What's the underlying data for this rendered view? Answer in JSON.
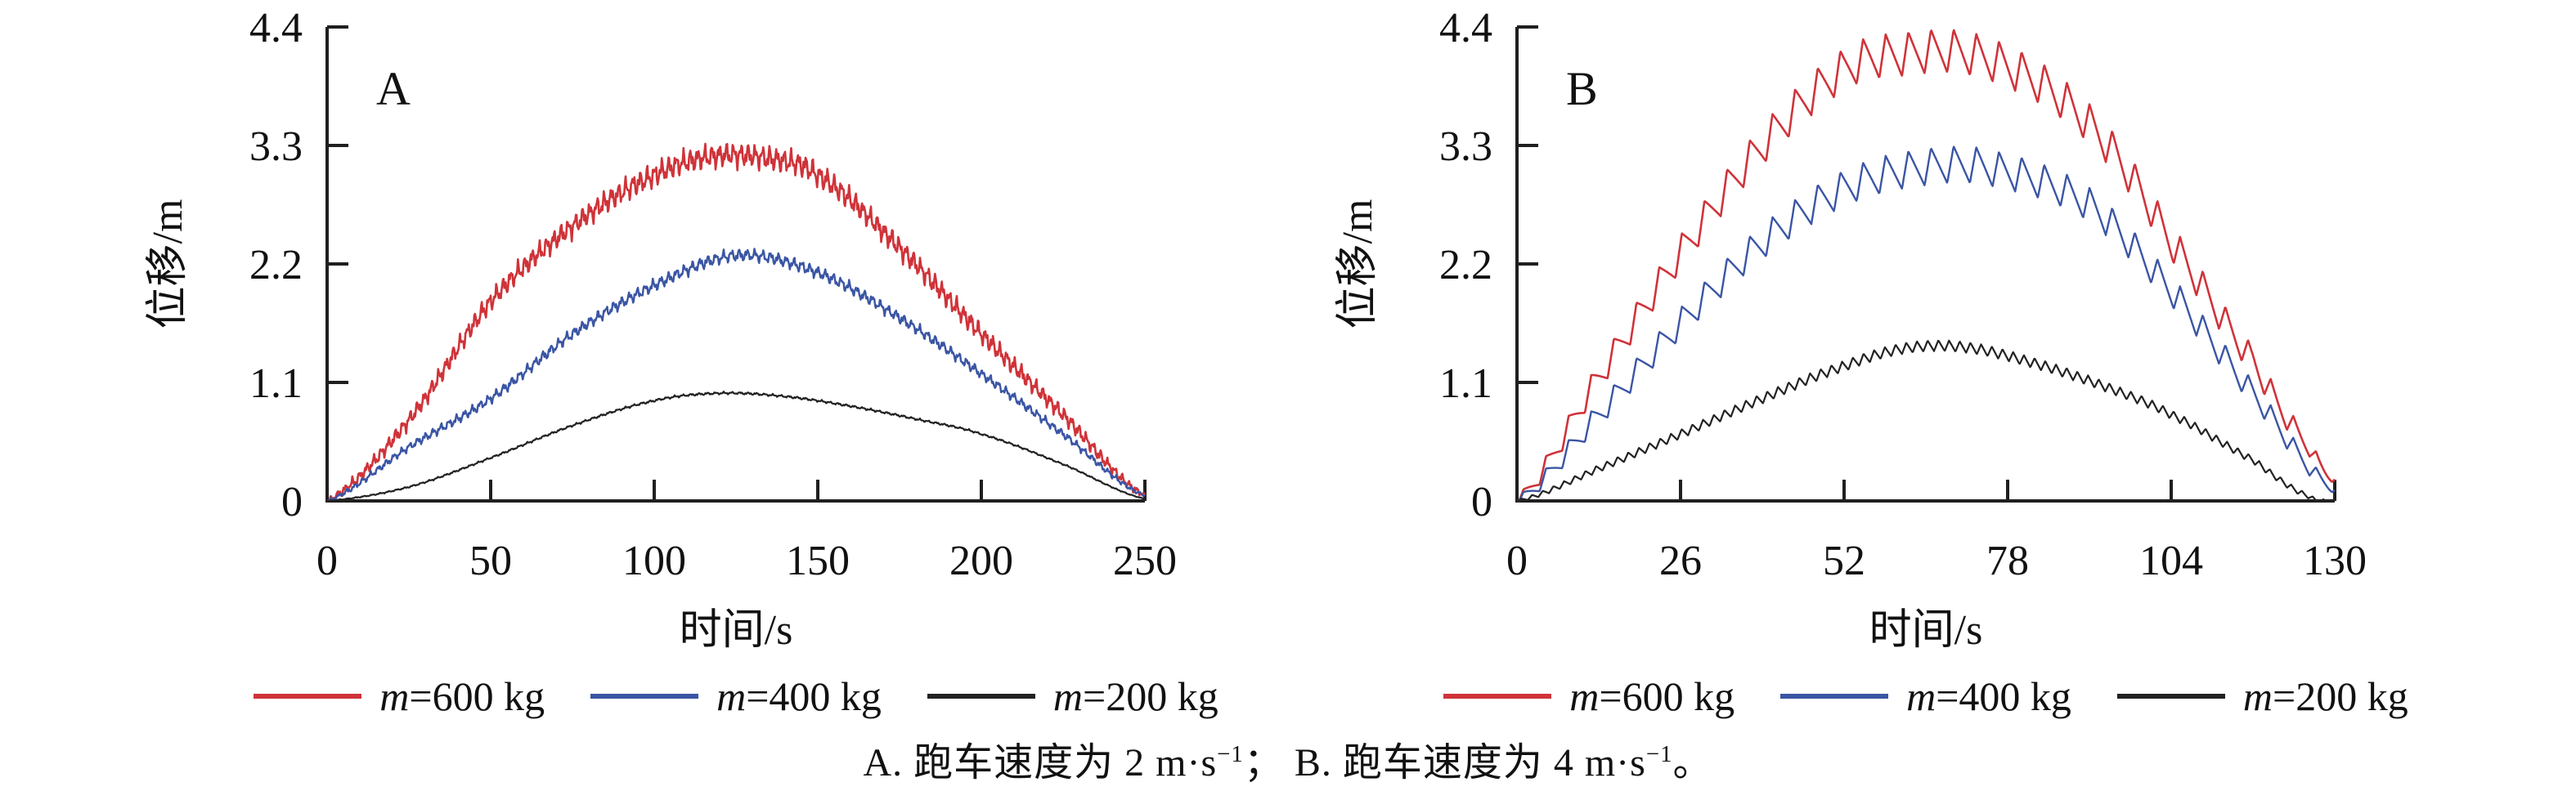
{
  "figure": {
    "background": "#ffffff",
    "axis_color": "#1f1f1f"
  },
  "legend": {
    "items": [
      {
        "var": "m",
        "rest": "=600 kg",
        "color": "#cf3339"
      },
      {
        "var": "m",
        "rest": "=400 kg",
        "color": "#3a55a4"
      },
      {
        "var": "m",
        "rest": "=200 kg",
        "color": "#222222"
      }
    ]
  },
  "caption": {
    "p1": "A. 跑车速度为 2 m·s",
    "sup1": "−1",
    "p2": "；  B. 跑车速度为 4 m·s",
    "sup2": "−1",
    "p3": "。"
  },
  "chart_data": [
    {
      "type": "line",
      "panel": "A",
      "title": "A",
      "xlabel": "时间/s",
      "ylabel": "位移/m",
      "xlim": [
        0,
        250
      ],
      "ylim": [
        0,
        4.4
      ],
      "xticks": [
        0,
        50,
        100,
        150,
        200,
        250
      ],
      "yticks": [
        0,
        1.1,
        2.2,
        3.3,
        4.4
      ],
      "grid": false,
      "legend_position": "bottom",
      "series": [
        {
          "name": "m=600 kg",
          "color": "#cf3339",
          "stroke_width": 2.6,
          "points": [
            [
              0,
              0
            ],
            [
              25,
              0.75
            ],
            [
              50,
              1.85
            ],
            [
              75,
              2.55
            ],
            [
              100,
              3.02
            ],
            [
              118,
              3.2
            ],
            [
              135,
              3.18
            ],
            [
              150,
              3.02
            ],
            [
              175,
              2.35
            ],
            [
              200,
              1.55
            ],
            [
              225,
              0.8
            ],
            [
              250,
              0.05
            ]
          ],
          "osc_amp": 0.085,
          "osc_period": 2.2,
          "osc_rise": 0.5,
          "jitter": 0.04
        },
        {
          "name": "m=400 kg",
          "color": "#3a55a4",
          "stroke_width": 2.4,
          "points": [
            [
              0,
              0
            ],
            [
              25,
              0.5
            ],
            [
              50,
              0.95
            ],
            [
              75,
              1.55
            ],
            [
              100,
              2.0
            ],
            [
              125,
              2.28
            ],
            [
              150,
              2.12
            ],
            [
              175,
              1.7
            ],
            [
              200,
              1.18
            ],
            [
              225,
              0.62
            ],
            [
              250,
              0.05
            ]
          ],
          "osc_amp": 0.045,
          "osc_period": 2.4,
          "osc_rise": 0.5,
          "jitter": 0.02
        },
        {
          "name": "m=200 kg",
          "color": "#222222",
          "stroke_width": 2.2,
          "points": [
            [
              0,
              0
            ],
            [
              25,
              0.13
            ],
            [
              50,
              0.4
            ],
            [
              75,
              0.7
            ],
            [
              100,
              0.93
            ],
            [
              120,
              1.0
            ],
            [
              140,
              0.97
            ],
            [
              160,
              0.88
            ],
            [
              180,
              0.76
            ],
            [
              200,
              0.62
            ],
            [
              225,
              0.34
            ],
            [
              250,
              0.02
            ]
          ],
          "osc_amp": 0.008,
          "osc_period": 2.5,
          "osc_rise": 0.5,
          "jitter": 0.004
        }
      ]
    },
    {
      "type": "line",
      "panel": "B",
      "title": "B",
      "xlabel": "时间/s",
      "ylabel": "位移/m",
      "xlim": [
        0,
        130
      ],
      "ylim": [
        0,
        4.4
      ],
      "xticks": [
        0,
        26,
        52,
        78,
        104,
        130
      ],
      "yticks": [
        0,
        1.1,
        2.2,
        3.3,
        4.4
      ],
      "grid": false,
      "legend_position": "bottom",
      "series": [
        {
          "name": "m=600 kg",
          "color": "#cf3339",
          "stroke_width": 2.6,
          "points": [
            [
              0,
              0
            ],
            [
              13,
              1.15
            ],
            [
              26,
              2.3
            ],
            [
              39,
              3.3
            ],
            [
              52,
              4.0
            ],
            [
              62,
              4.15
            ],
            [
              72,
              4.15
            ],
            [
              84,
              3.85
            ],
            [
              94,
              3.3
            ],
            [
              104,
              2.4
            ],
            [
              117,
              1.3
            ],
            [
              126,
              0.5
            ],
            [
              130,
              0.2
            ]
          ],
          "osc_amp": 0.2,
          "osc_period": 3.6,
          "osc_rise": 0.28,
          "jitter": 0
        },
        {
          "name": "m=400 kg",
          "color": "#3a55a4",
          "stroke_width": 2.4,
          "points": [
            [
              0,
              0
            ],
            [
              13,
              0.8
            ],
            [
              26,
              1.65
            ],
            [
              39,
              2.4
            ],
            [
              52,
              2.9
            ],
            [
              65,
              3.1
            ],
            [
              76,
              3.08
            ],
            [
              91,
              2.75
            ],
            [
              104,
              1.95
            ],
            [
              117,
              1.0
            ],
            [
              130,
              0.1
            ]
          ],
          "osc_amp": 0.17,
          "osc_period": 3.6,
          "osc_rise": 0.28,
          "jitter": 0
        },
        {
          "name": "m=200 kg",
          "color": "#222222",
          "stroke_width": 2.2,
          "points": [
            [
              0,
              0
            ],
            [
              13,
              0.3
            ],
            [
              26,
              0.62
            ],
            [
              39,
              0.95
            ],
            [
              52,
              1.25
            ],
            [
              62,
              1.42
            ],
            [
              72,
              1.42
            ],
            [
              84,
              1.25
            ],
            [
              94,
              1.05
            ],
            [
              104,
              0.8
            ],
            [
              117,
              0.38
            ],
            [
              126,
              0.04
            ],
            [
              130,
              0
            ]
          ],
          "osc_amp": 0.05,
          "osc_period": 1.7,
          "osc_rise": 0.4,
          "jitter": 0
        }
      ]
    }
  ]
}
